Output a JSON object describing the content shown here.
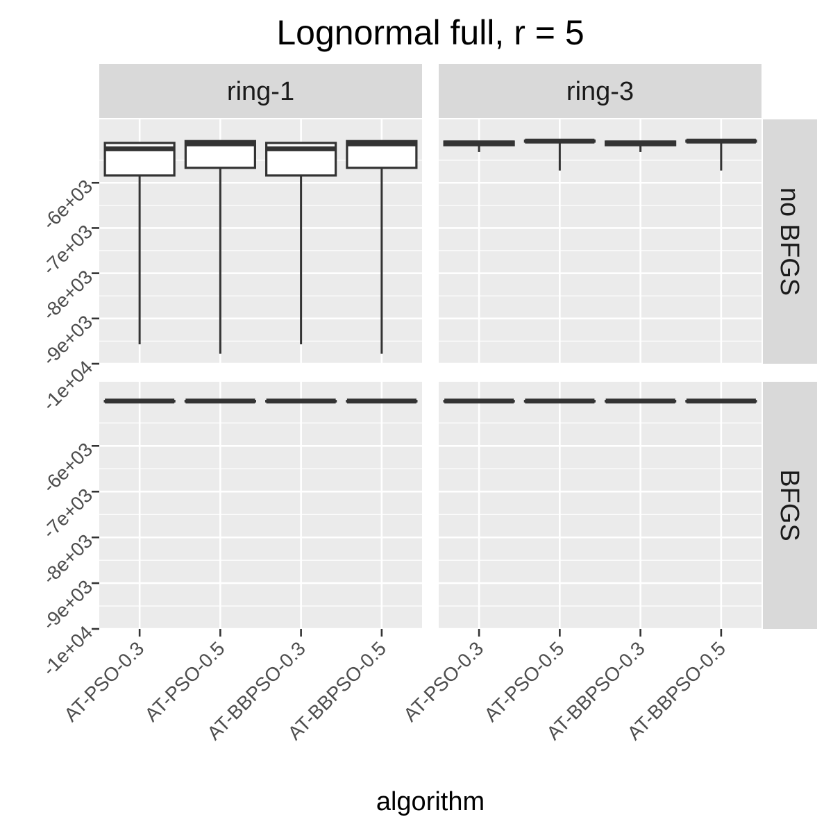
{
  "chart_data": {
    "type": "boxplot",
    "title": "Lognormal full, r = 5",
    "xlabel": "algorithm",
    "ylabel": "",
    "categories": [
      "AT-PSO-0.3",
      "AT-PSO-0.5",
      "AT-BBPSO-0.3",
      "AT-BBPSO-0.5"
    ],
    "facet_columns": [
      "ring-1",
      "ring-3"
    ],
    "facet_rows": [
      "no BFGS",
      "BFGS"
    ],
    "ylim": [
      -10000,
      -4600
    ],
    "y_ticks": [
      -6000,
      -7000,
      -8000,
      -9000,
      -10000
    ],
    "y_tick_labels": [
      "-6e+03",
      "-7e+03",
      "-8e+03",
      "-9e+03",
      "-1e+04"
    ],
    "grid": true,
    "legend": "none",
    "colors": {
      "panel_background": "#ebebeb",
      "strip_background": "#d9d9d9",
      "box_fill": "#ffffff",
      "box_line": "#333333",
      "grid": "#ffffff"
    },
    "panels": [
      {
        "column": "ring-1",
        "row": "no BFGS",
        "boxes": [
          {
            "category": "AT-PSO-0.3",
            "min": -9570,
            "q1": -5840,
            "median": -5250,
            "q3": -5120,
            "max": -5120
          },
          {
            "category": "AT-PSO-0.5",
            "min": -9780,
            "q1": -5670,
            "median": -5140,
            "q3": -5080,
            "max": -5080
          },
          {
            "category": "AT-BBPSO-0.3",
            "min": -9570,
            "q1": -5840,
            "median": -5250,
            "q3": -5120,
            "max": -5120
          },
          {
            "category": "AT-BBPSO-0.5",
            "min": -9780,
            "q1": -5670,
            "median": -5140,
            "q3": -5080,
            "max": -5080
          }
        ]
      },
      {
        "column": "ring-3",
        "row": "no BFGS",
        "boxes": [
          {
            "category": "AT-PSO-0.3",
            "min": -5320,
            "q1": -5170,
            "median": -5120,
            "q3": -5090,
            "max": -5080
          },
          {
            "category": "AT-PSO-0.5",
            "min": -5730,
            "q1": -5090,
            "median": -5080,
            "q3": -5070,
            "max": -5070
          },
          {
            "category": "AT-BBPSO-0.3",
            "min": -5320,
            "q1": -5170,
            "median": -5120,
            "q3": -5090,
            "max": -5080
          },
          {
            "category": "AT-BBPSO-0.5",
            "min": -5730,
            "q1": -5090,
            "median": -5080,
            "q3": -5070,
            "max": -5070
          }
        ]
      },
      {
        "column": "ring-1",
        "row": "BFGS",
        "boxes": [
          {
            "category": "AT-PSO-0.3",
            "min": -5020,
            "q1": -5020,
            "median": -5020,
            "q3": -5020,
            "max": -5020
          },
          {
            "category": "AT-PSO-0.5",
            "min": -5020,
            "q1": -5020,
            "median": -5020,
            "q3": -5020,
            "max": -5020
          },
          {
            "category": "AT-BBPSO-0.3",
            "min": -5020,
            "q1": -5020,
            "median": -5020,
            "q3": -5020,
            "max": -5020
          },
          {
            "category": "AT-BBPSO-0.5",
            "min": -5020,
            "q1": -5020,
            "median": -5020,
            "q3": -5020,
            "max": -5020
          }
        ]
      },
      {
        "column": "ring-3",
        "row": "BFGS",
        "boxes": [
          {
            "category": "AT-PSO-0.3",
            "min": -5020,
            "q1": -5020,
            "median": -5020,
            "q3": -5020,
            "max": -5020
          },
          {
            "category": "AT-PSO-0.5",
            "min": -5020,
            "q1": -5020,
            "median": -5020,
            "q3": -5020,
            "max": -5020
          },
          {
            "category": "AT-BBPSO-0.3",
            "min": -5020,
            "q1": -5020,
            "median": -5020,
            "q3": -5020,
            "max": -5020
          },
          {
            "category": "AT-BBPSO-0.5",
            "min": -5020,
            "q1": -5020,
            "median": -5020,
            "q3": -5020,
            "max": -5020
          }
        ]
      }
    ]
  }
}
